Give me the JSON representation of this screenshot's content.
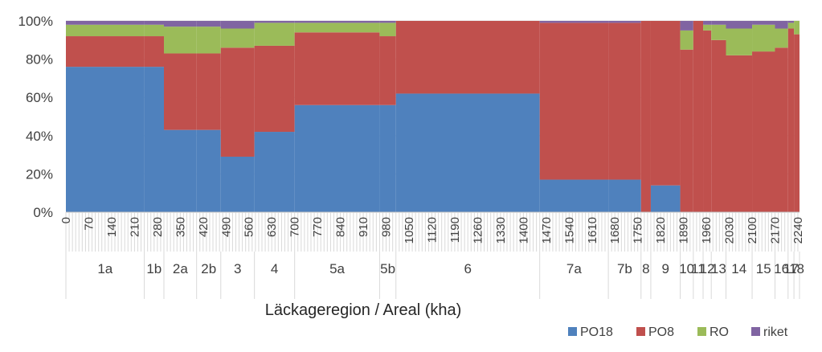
{
  "chart_data": {
    "type": "bar",
    "subtype": "marimekko-100-percent-stacked",
    "title": "",
    "xlabel": "Läckageregion / Areal (kha)",
    "ylabel": "",
    "ylim": [
      0,
      100
    ],
    "yticks": [
      "0%",
      "20%",
      "40%",
      "60%",
      "80%",
      "100%"
    ],
    "xlim": [
      0,
      2245
    ],
    "xticks": [
      0,
      70,
      140,
      210,
      280,
      350,
      420,
      490,
      560,
      630,
      700,
      770,
      840,
      910,
      980,
      1050,
      1120,
      1190,
      1260,
      1330,
      1400,
      1470,
      1540,
      1610,
      1680,
      1750,
      1820,
      1890,
      1960,
      2030,
      2100,
      2170,
      2240
    ],
    "legend_position": "bottom-right",
    "series": [
      {
        "name": "PO18",
        "color": "#4f81bd"
      },
      {
        "name": "PO8",
        "color": "#c0504d"
      },
      {
        "name": "RO",
        "color": "#9bbb59"
      },
      {
        "name": "riket",
        "color": "#8064a2"
      }
    ],
    "regions": [
      {
        "label": "1a",
        "start": 0,
        "end": 240,
        "values": [
          76,
          16,
          6,
          2
        ]
      },
      {
        "label": "1b",
        "start": 240,
        "end": 300,
        "values": [
          76,
          16,
          6,
          2
        ]
      },
      {
        "label": "2a",
        "start": 300,
        "end": 400,
        "values": [
          43,
          40,
          14,
          3
        ]
      },
      {
        "label": "2b",
        "start": 400,
        "end": 474,
        "values": [
          43,
          40,
          14,
          3
        ]
      },
      {
        "label": "3",
        "start": 474,
        "end": 577,
        "values": [
          29,
          57,
          10,
          4
        ]
      },
      {
        "label": "4",
        "start": 577,
        "end": 700,
        "values": [
          42,
          45,
          12,
          1
        ]
      },
      {
        "label": "5a",
        "start": 700,
        "end": 960,
        "values": [
          56,
          38,
          5,
          1
        ]
      },
      {
        "label": "5b",
        "start": 960,
        "end": 1010,
        "values": [
          56,
          36,
          7,
          1
        ]
      },
      {
        "label": "6",
        "start": 1010,
        "end": 1450,
        "values": [
          62,
          38,
          0,
          0
        ]
      },
      {
        "label": "7a",
        "start": 1450,
        "end": 1660,
        "values": [
          17,
          82,
          0,
          1
        ]
      },
      {
        "label": "7b",
        "start": 1660,
        "end": 1760,
        "values": [
          17,
          82,
          0,
          1
        ]
      },
      {
        "label": "8",
        "start": 1760,
        "end": 1790,
        "values": [
          0,
          100,
          0,
          0
        ]
      },
      {
        "label": "9",
        "start": 1790,
        "end": 1880,
        "values": [
          14,
          86,
          0,
          0
        ]
      },
      {
        "label": "10",
        "start": 1880,
        "end": 1920,
        "values": [
          0,
          85,
          10,
          5
        ]
      },
      {
        "label": "11",
        "start": 1920,
        "end": 1950,
        "values": [
          0,
          100,
          0,
          0
        ]
      },
      {
        "label": "12",
        "start": 1950,
        "end": 1975,
        "values": [
          0,
          95,
          3,
          2
        ]
      },
      {
        "label": "13",
        "start": 1975,
        "end": 2020,
        "values": [
          0,
          90,
          8,
          2
        ]
      },
      {
        "label": "14",
        "start": 2020,
        "end": 2100,
        "values": [
          0,
          82,
          14,
          4
        ]
      },
      {
        "label": "15",
        "start": 2100,
        "end": 2170,
        "values": [
          0,
          84,
          14,
          2
        ]
      },
      {
        "label": "16",
        "start": 2170,
        "end": 2210,
        "values": [
          0,
          86,
          10,
          4
        ]
      },
      {
        "label": "17",
        "start": 2210,
        "end": 2228,
        "values": [
          0,
          96,
          3,
          1
        ]
      },
      {
        "label": "18",
        "start": 2228,
        "end": 2245,
        "values": [
          0,
          93,
          7,
          0
        ]
      }
    ]
  }
}
